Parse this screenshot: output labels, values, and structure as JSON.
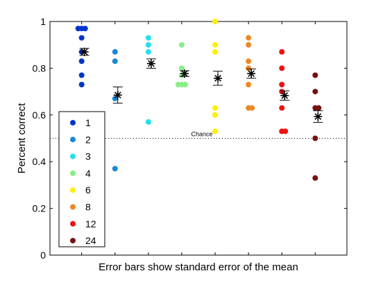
{
  "chart_data": {
    "type": "scatter",
    "title": "",
    "xlabel": "Error bars show standard error of the mean",
    "ylabel": "Percent correct",
    "ylim": [
      0,
      1
    ],
    "yticks": [
      "0",
      "0.2",
      "0.4",
      "0.6",
      "0.8",
      "1"
    ],
    "grid": false,
    "legend_position": "lower-left",
    "chance_line": {
      "y": 0.5,
      "label": "Chance",
      "style": "dotted"
    },
    "series": [
      {
        "name": "1",
        "color": "#0033cc",
        "points": [
          0.97,
          0.97,
          0.97,
          0.93,
          0.87,
          0.83,
          0.77,
          0.73
        ],
        "mean": 0.87,
        "sem": 0.015
      },
      {
        "name": "2",
        "color": "#1a88d6",
        "points": [
          0.87,
          0.83,
          0.67,
          0.37
        ],
        "mean": 0.685,
        "sem": 0.035
      },
      {
        "name": "3",
        "color": "#22e0f0",
        "points": [
          0.93,
          0.9,
          0.87,
          0.57
        ],
        "mean": 0.82,
        "sem": 0.02
      },
      {
        "name": "4",
        "color": "#88ee88",
        "points": [
          0.9,
          0.8,
          0.77,
          0.73,
          0.73,
          0.73
        ],
        "mean": 0.777,
        "sem": 0.012
      },
      {
        "name": "6",
        "color": "#ffee00",
        "points": [
          1.0,
          0.9,
          0.87,
          0.63,
          0.6,
          0.53
        ],
        "mean": 0.757,
        "sem": 0.03
      },
      {
        "name": "8",
        "color": "#ee8822",
        "points": [
          0.93,
          0.9,
          0.83,
          0.8,
          0.73,
          0.63,
          0.63
        ],
        "mean": 0.777,
        "sem": 0.02
      },
      {
        "name": "12",
        "color": "#ee1111",
        "points": [
          0.87,
          0.8,
          0.73,
          0.7,
          0.63,
          0.53,
          0.53
        ],
        "mean": 0.683,
        "sem": 0.02
      },
      {
        "name": "24",
        "color": "#771111",
        "points": [
          0.77,
          0.7,
          0.63,
          0.63,
          0.5,
          0.33
        ],
        "mean": 0.593,
        "sem": 0.025
      }
    ]
  }
}
